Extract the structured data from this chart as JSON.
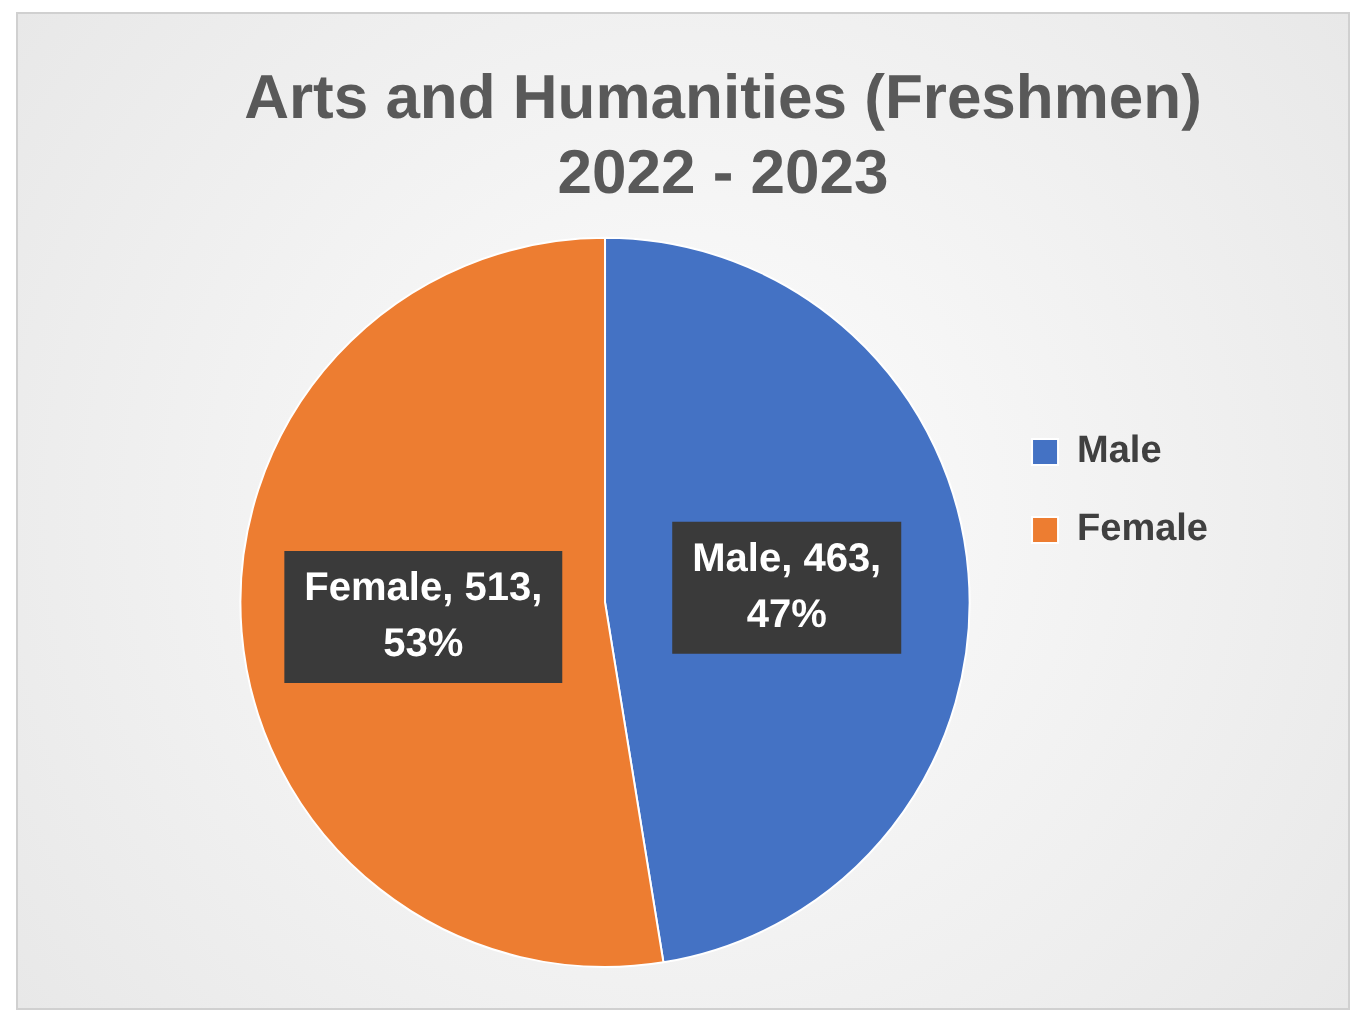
{
  "chart_data": {
    "type": "pie",
    "title": "Arts and Humanities (Freshmen)\n2022 - 2023",
    "categories": [
      "Male",
      "Female"
    ],
    "values": [
      463,
      513
    ],
    "colors": [
      "#4472c4",
      "#ed7d31"
    ],
    "value_labels": [
      "Male, 463, 47%",
      "Female, 513, 53%"
    ],
    "legend": "right"
  }
}
